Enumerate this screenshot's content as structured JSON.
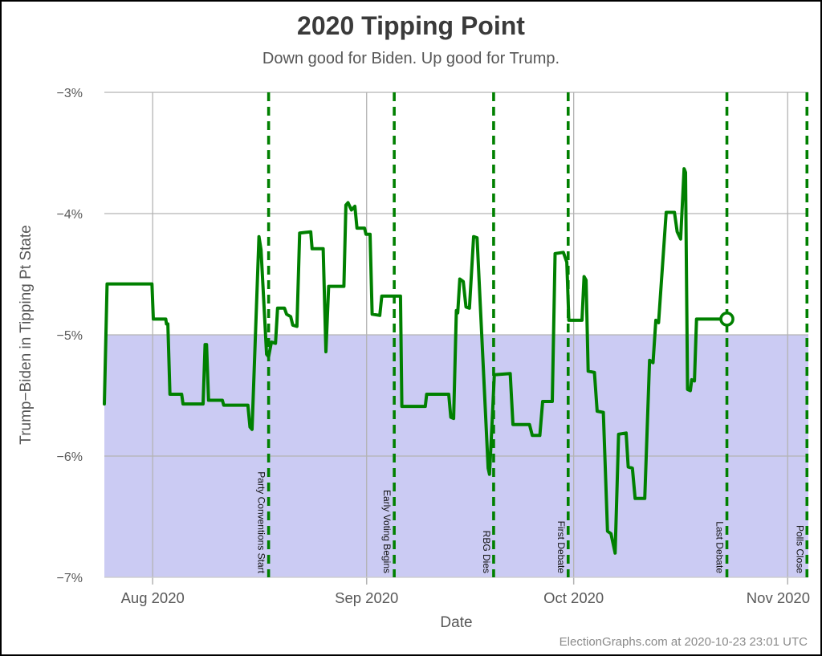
{
  "header": {
    "title": "2020 Tipping Point",
    "subtitle": "Down good for Biden. Up good for Trump."
  },
  "axes": {
    "y_label": "Trump−Biden in Tipping Pt State",
    "x_label": "Date",
    "y_ticks": [
      {
        "label": "−3%",
        "value": -3
      },
      {
        "label": "−4%",
        "value": -4
      },
      {
        "label": "−5%",
        "value": -5
      },
      {
        "label": "−6%",
        "value": -6
      },
      {
        "label": "−7%",
        "value": -7
      }
    ],
    "x_ticks": [
      {
        "label": "Aug 2020",
        "day": 7
      },
      {
        "label": "Sep 2020",
        "day": 38
      },
      {
        "label": "Oct 2020",
        "day": 68
      },
      {
        "label": "Nov 2020",
        "day": 99
      }
    ]
  },
  "events": [
    {
      "label": "Party Conventions Start",
      "day": 23.8
    },
    {
      "label": "Early Voting Begins",
      "day": 42.0
    },
    {
      "label": "RBG Dies",
      "day": 56.4
    },
    {
      "label": "First Debate",
      "day": 67.2
    },
    {
      "label": "Last Debate",
      "day": 90.2
    },
    {
      "label": "Polls Close",
      "day": 101.8
    }
  ],
  "footer": {
    "attribution": "ElectionGraphs.com at 2020-10-23 23:01 UTC"
  },
  "colors": {
    "line": "#008000",
    "event_line": "#008000",
    "shade": "#cbcbf3",
    "grid": "#b3b3b3",
    "tick_text": "#595959",
    "event_text": "#111111"
  },
  "chart_data": {
    "type": "line",
    "title": "2020 Tipping Point",
    "xlabel": "Date",
    "ylabel": "Trump−Biden in Tipping Pt State",
    "x_unit": "days since 2020-07-25",
    "xlim": [
      0,
      102
    ],
    "ylim": [
      -7,
      -3
    ],
    "grid": true,
    "shaded_region": {
      "below": -5
    },
    "series": [
      {
        "name": "Trump−Biden margin in tipping point state (%)",
        "points": [
          [
            0,
            -5.57
          ],
          [
            0.4,
            -4.58
          ],
          [
            6.9,
            -4.58
          ],
          [
            7.1,
            -4.87
          ],
          [
            8.9,
            -4.87
          ],
          [
            9.0,
            -4.91
          ],
          [
            9.2,
            -4.91
          ],
          [
            9.5,
            -5.49
          ],
          [
            11.2,
            -5.49
          ],
          [
            11.4,
            -5.57
          ],
          [
            14.3,
            -5.57
          ],
          [
            14.6,
            -5.08
          ],
          [
            14.8,
            -5.08
          ],
          [
            15.1,
            -5.54
          ],
          [
            17.1,
            -5.54
          ],
          [
            17.3,
            -5.58
          ],
          [
            20.8,
            -5.58
          ],
          [
            21.1,
            -5.76
          ],
          [
            21.4,
            -5.78
          ],
          [
            22.4,
            -4.19
          ],
          [
            22.7,
            -4.3
          ],
          [
            23.5,
            -5.16
          ],
          [
            23.8,
            -5.18
          ],
          [
            24.2,
            -5.06
          ],
          [
            24.8,
            -5.07
          ],
          [
            25.1,
            -4.78
          ],
          [
            26.1,
            -4.78
          ],
          [
            26.4,
            -4.83
          ],
          [
            27.0,
            -4.85
          ],
          [
            27.3,
            -4.92
          ],
          [
            27.9,
            -4.93
          ],
          [
            28.3,
            -4.16
          ],
          [
            29.9,
            -4.15
          ],
          [
            30.1,
            -4.29
          ],
          [
            31.7,
            -4.29
          ],
          [
            32.1,
            -5.14
          ],
          [
            32.5,
            -4.6
          ],
          [
            34.7,
            -4.6
          ],
          [
            35.0,
            -3.93
          ],
          [
            35.3,
            -3.91
          ],
          [
            35.8,
            -3.97
          ],
          [
            36.3,
            -3.94
          ],
          [
            36.6,
            -4.12
          ],
          [
            37.7,
            -4.12
          ],
          [
            37.9,
            -4.17
          ],
          [
            38.5,
            -4.17
          ],
          [
            38.8,
            -4.83
          ],
          [
            39.9,
            -4.84
          ],
          [
            40.2,
            -4.68
          ],
          [
            42.9,
            -4.68
          ],
          [
            43.1,
            -5.59
          ],
          [
            46.5,
            -5.59
          ],
          [
            46.7,
            -5.49
          ],
          [
            49.9,
            -5.49
          ],
          [
            50.2,
            -5.68
          ],
          [
            50.6,
            -5.69
          ],
          [
            51.0,
            -4.8
          ],
          [
            51.2,
            -4.82
          ],
          [
            51.5,
            -4.54
          ],
          [
            52.0,
            -4.56
          ],
          [
            52.4,
            -4.77
          ],
          [
            52.9,
            -4.78
          ],
          [
            53.5,
            -4.19
          ],
          [
            54.0,
            -4.2
          ],
          [
            55.6,
            -6.1
          ],
          [
            55.8,
            -6.15
          ],
          [
            56.2,
            -5.7
          ],
          [
            56.5,
            -5.33
          ],
          [
            58.8,
            -5.32
          ],
          [
            59.2,
            -5.74
          ],
          [
            61.6,
            -5.74
          ],
          [
            62.0,
            -5.83
          ],
          [
            63.1,
            -5.83
          ],
          [
            63.5,
            -5.55
          ],
          [
            64.9,
            -5.55
          ],
          [
            65.3,
            -4.33
          ],
          [
            66.5,
            -4.32
          ],
          [
            67.0,
            -4.4
          ],
          [
            67.3,
            -4.88
          ],
          [
            69.2,
            -4.88
          ],
          [
            69.5,
            -4.52
          ],
          [
            69.8,
            -4.55
          ],
          [
            70.1,
            -5.3
          ],
          [
            71.0,
            -5.31
          ],
          [
            71.4,
            -5.63
          ],
          [
            72.3,
            -5.64
          ],
          [
            72.9,
            -6.62
          ],
          [
            73.4,
            -6.64
          ],
          [
            74.0,
            -6.8
          ],
          [
            74.5,
            -5.82
          ],
          [
            75.6,
            -5.81
          ],
          [
            75.9,
            -6.09
          ],
          [
            76.5,
            -6.1
          ],
          [
            76.9,
            -6.35
          ],
          [
            78.3,
            -6.35
          ],
          [
            79.0,
            -5.21
          ],
          [
            79.5,
            -5.23
          ],
          [
            79.9,
            -4.88
          ],
          [
            80.3,
            -4.9
          ],
          [
            81.4,
            -3.99
          ],
          [
            82.6,
            -3.99
          ],
          [
            83.0,
            -4.15
          ],
          [
            83.5,
            -4.21
          ],
          [
            84.0,
            -3.63
          ],
          [
            84.2,
            -3.66
          ],
          [
            84.5,
            -5.45
          ],
          [
            84.9,
            -5.46
          ],
          [
            85.1,
            -5.37
          ],
          [
            85.5,
            -5.38
          ],
          [
            85.8,
            -4.87
          ],
          [
            90.2,
            -4.87
          ]
        ]
      }
    ],
    "end_marker": {
      "day": 90.2,
      "value": -4.87
    }
  }
}
